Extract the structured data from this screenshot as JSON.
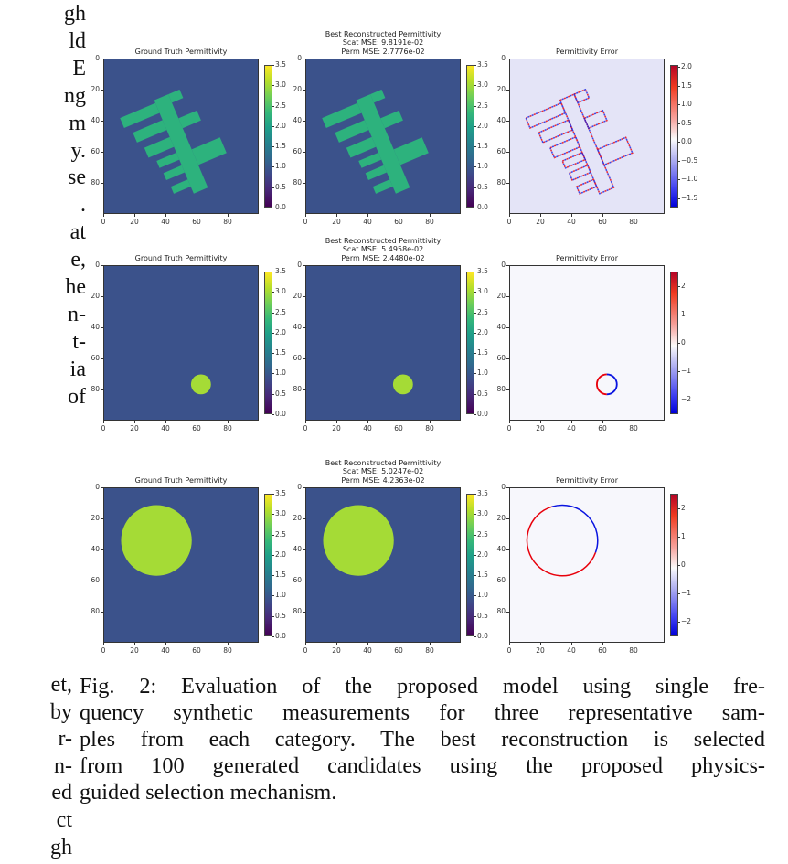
{
  "left_column_text": {
    "top_lines": [
      "gh",
      "ld",
      "E",
      "ng",
      "m",
      "y.",
      "se",
      ".",
      "at",
      "e,",
      "he",
      "n-",
      "t-",
      "ia",
      "of"
    ],
    "bottom_lines": [
      "et,",
      "by",
      "r-",
      "n-",
      "ed",
      "ct",
      "gh"
    ]
  },
  "figure": {
    "axis_ticks": [
      "0",
      "20",
      "40",
      "60",
      "80"
    ],
    "colors": {
      "background_permittivity": "#3b528b",
      "comb_permittivity": "#2db27d",
      "circle_permittivity": "#a5db36",
      "error_positive": "#e8000b",
      "error_negative": "#0a14e0"
    },
    "rows": [
      {
        "ground_truth_title": "Ground Truth Permittivity",
        "reconstruction_title": "Best Reconstructed Permittivity",
        "scat_mse": "Scat MSE: 9.8191e-02",
        "perm_mse": "Perm MSE: 2.7776e-02",
        "error_title": "Permittivity Error",
        "shape": "comb",
        "permittivity_colorbar_ticks": [
          "3.5",
          "3.0",
          "2.5",
          "2.0",
          "1.5",
          "1.0",
          "0.5",
          "0.0"
        ],
        "error_colorbar_ticks": [
          "2.0",
          "1.5",
          "1.0",
          "0.5",
          "0.0",
          "−0.5",
          "−1.0",
          "−1.5"
        ],
        "error_range": [
          -1.75,
          2.05
        ]
      },
      {
        "ground_truth_title": "Ground Truth Permittivity",
        "reconstruction_title": "Best Reconstructed Permittivity",
        "scat_mse": "Scat MSE: 5.4958e-02",
        "perm_mse": "Perm MSE: 2.4480e-02",
        "error_title": "Permittivity Error",
        "shape": "circle",
        "circle": {
          "cx": 63,
          "cy": 77,
          "r": 6.5
        },
        "permittivity_colorbar_ticks": [
          "3.5",
          "3.0",
          "2.5",
          "2.0",
          "1.5",
          "1.0",
          "0.5",
          "0.0"
        ],
        "error_colorbar_ticks": [
          "2",
          "1",
          "0",
          "−1",
          "−2"
        ],
        "error_range": [
          -2.5,
          2.5
        ]
      },
      {
        "ground_truth_title": "Ground Truth Permittivity",
        "reconstruction_title": "Best Reconstructed Permittivity",
        "scat_mse": "Scat MSE: 5.0247e-02",
        "perm_mse": "Perm MSE: 4.2363e-02",
        "error_title": "Permittivity Error",
        "shape": "circle",
        "circle": {
          "cx": 34,
          "cy": 34,
          "r": 23
        },
        "permittivity_colorbar_ticks": [
          "3.5",
          "3.0",
          "2.5",
          "2.0",
          "1.5",
          "1.0",
          "0.5",
          "0.0"
        ],
        "error_colorbar_ticks": [
          "2",
          "1",
          "0",
          "−1",
          "−2"
        ],
        "error_range": [
          -2.5,
          2.5
        ]
      }
    ]
  },
  "caption": {
    "lines": [
      "Fig. 2: Evaluation of the proposed model using single fre-",
      "quency synthetic measurements for three representative sam-",
      "ples from each category. The best reconstruction is selected",
      "from 100 generated candidates using the proposed physics-",
      "guided selection mechanism."
    ]
  }
}
